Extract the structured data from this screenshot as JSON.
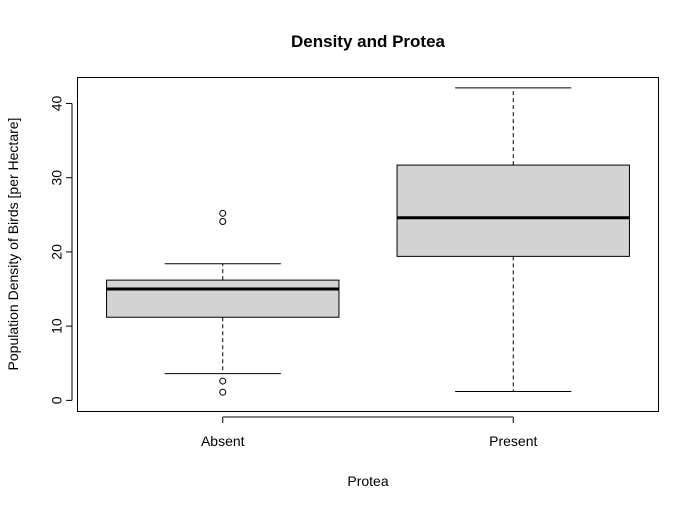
{
  "chart_data": {
    "type": "boxplot",
    "title": "Density and Protea",
    "xlabel": "Protea",
    "ylabel": "Population Density of Birds [per Hectare]",
    "categories": [
      "Absent",
      "Present"
    ],
    "ylim": [
      -1.5,
      43.5
    ],
    "yticks": [
      0,
      10,
      20,
      30,
      40
    ],
    "grid": false,
    "legend": "none",
    "box_fill": "#d3d3d3",
    "line_color": "#000000",
    "boxes": [
      {
        "name": "Absent",
        "whisker_low": 3.6,
        "q1": 11.2,
        "median": 15.0,
        "q3": 16.2,
        "whisker_high": 18.4,
        "outliers": [
          25.2,
          24.1,
          2.6,
          1.1
        ]
      },
      {
        "name": "Present",
        "whisker_low": 1.2,
        "q1": 19.4,
        "median": 24.6,
        "q3": 31.7,
        "whisker_high": 42.1,
        "outliers": []
      }
    ]
  }
}
